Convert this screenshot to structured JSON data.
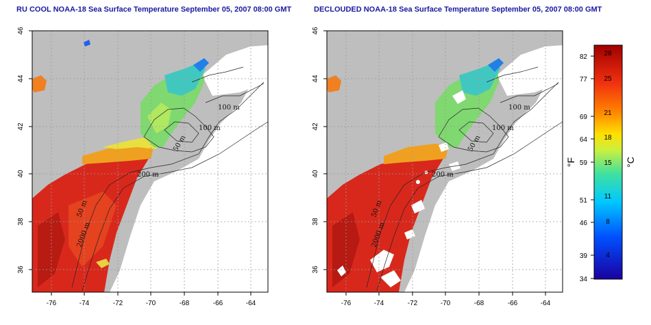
{
  "maps": [
    {
      "title": "RU COOL NOAA-18 Sea Surface Temperature September 05, 2007 08:00 GMT",
      "x_ticks": [
        "-76",
        "-74",
        "-72",
        "-70",
        "-68",
        "-66",
        "-64"
      ],
      "y_ticks": [
        "46",
        "44",
        "42",
        "40",
        "38",
        "36"
      ],
      "contour_labels": [
        "100 m",
        "100 m",
        "50 m",
        "200 m",
        "50 m",
        "2000 m"
      ]
    },
    {
      "title": "DECLOUDED NOAA-18 Sea Surface Temperature September 05, 2007 08:00 GMT",
      "x_ticks": [
        "-76",
        "-74",
        "-72",
        "-70",
        "-68",
        "-66",
        "-64"
      ],
      "y_ticks": [
        "46",
        "44",
        "42",
        "40",
        "38",
        "36"
      ],
      "contour_labels": [
        "100 m",
        "100 m",
        "50 m",
        "200 m",
        "50 m",
        "2000 m"
      ]
    }
  ],
  "colorbar": {
    "f_label": "°F",
    "c_label": "°C",
    "f_ticks": [
      "82",
      "77",
      "69",
      "64",
      "59",
      "51",
      "46",
      "39",
      "34"
    ],
    "c_ticks": [
      "28",
      "25",
      "21",
      "18",
      "15",
      "11",
      "8",
      "4"
    ]
  },
  "colors": {
    "land": "#bebebe",
    "water": "#ffffff",
    "title": "#1a1aa0"
  }
}
